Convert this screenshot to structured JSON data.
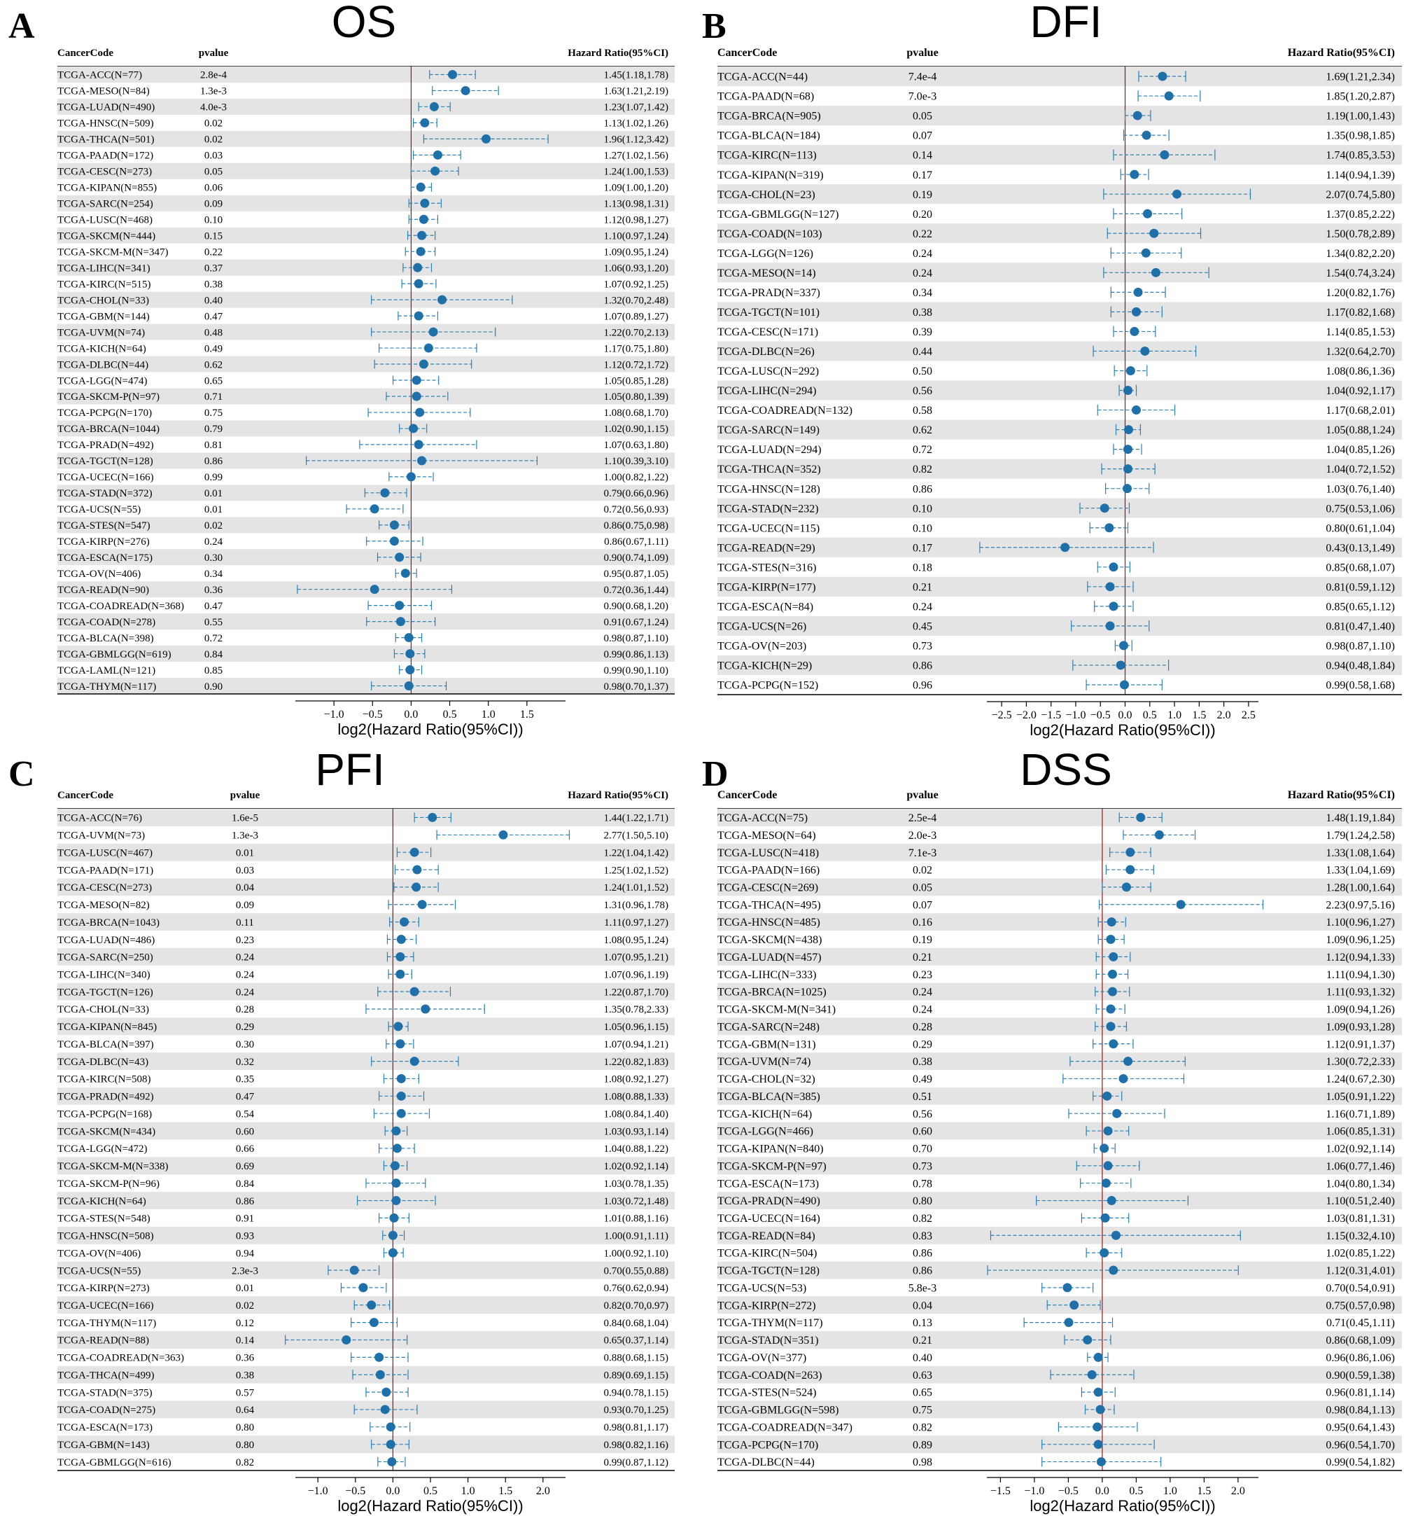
{
  "header": {
    "code_label": "CancerCode",
    "pvalue_label": "pvalue",
    "hr_label": "Hazard Ratio(95%CI)"
  },
  "colors": {
    "point": "#1f6fa8",
    "ci": "#2a7fb5",
    "ref_line": "#8b1a1a",
    "row_alt": "#e4e4e4"
  },
  "chart_data": [
    {
      "type": "forest",
      "letter": "A",
      "title": "OS",
      "xlabel": "log2(Hazard Ratio(95%CI))",
      "xticks": [
        -1.0,
        -0.5,
        0.0,
        0.5,
        1.0,
        1.5
      ],
      "xtick_labels": [
        "−1.0",
        "−0.5",
        "0.0",
        "0.5",
        "1.0",
        "1.5"
      ],
      "rows": [
        {
          "code": "TCGA-ACC(N=77)",
          "p": "2.8e-4",
          "hr": "1.45(1.18,1.78)"
        },
        {
          "code": "TCGA-MESO(N=84)",
          "p": "1.3e-3",
          "hr": "1.63(1.21,2.19)"
        },
        {
          "code": "TCGA-LUAD(N=490)",
          "p": "4.0e-3",
          "hr": "1.23(1.07,1.42)"
        },
        {
          "code": "TCGA-HNSC(N=509)",
          "p": "0.02",
          "hr": "1.13(1.02,1.26)"
        },
        {
          "code": "TCGA-THCA(N=501)",
          "p": "0.02",
          "hr": "1.96(1.12,3.42)"
        },
        {
          "code": "TCGA-PAAD(N=172)",
          "p": "0.03",
          "hr": "1.27(1.02,1.56)"
        },
        {
          "code": "TCGA-CESC(N=273)",
          "p": "0.05",
          "hr": "1.24(1.00,1.53)"
        },
        {
          "code": "TCGA-KIPAN(N=855)",
          "p": "0.06",
          "hr": "1.09(1.00,1.20)"
        },
        {
          "code": "TCGA-SARC(N=254)",
          "p": "0.09",
          "hr": "1.13(0.98,1.31)"
        },
        {
          "code": "TCGA-LUSC(N=468)",
          "p": "0.10",
          "hr": "1.12(0.98,1.27)"
        },
        {
          "code": "TCGA-SKCM(N=444)",
          "p": "0.15",
          "hr": "1.10(0.97,1.24)"
        },
        {
          "code": "TCGA-SKCM-M(N=347)",
          "p": "0.22",
          "hr": "1.09(0.95,1.24)"
        },
        {
          "code": "TCGA-LIHC(N=341)",
          "p": "0.37",
          "hr": "1.06(0.93,1.20)"
        },
        {
          "code": "TCGA-KIRC(N=515)",
          "p": "0.38",
          "hr": "1.07(0.92,1.25)"
        },
        {
          "code": "TCGA-CHOL(N=33)",
          "p": "0.40",
          "hr": "1.32(0.70,2.48)"
        },
        {
          "code": "TCGA-GBM(N=144)",
          "p": "0.47",
          "hr": "1.07(0.89,1.27)"
        },
        {
          "code": "TCGA-UVM(N=74)",
          "p": "0.48",
          "hr": "1.22(0.70,2.13)"
        },
        {
          "code": "TCGA-KICH(N=64)",
          "p": "0.49",
          "hr": "1.17(0.75,1.80)"
        },
        {
          "code": "TCGA-DLBC(N=44)",
          "p": "0.62",
          "hr": "1.12(0.72,1.72)"
        },
        {
          "code": "TCGA-LGG(N=474)",
          "p": "0.65",
          "hr": "1.05(0.85,1.28)"
        },
        {
          "code": "TCGA-SKCM-P(N=97)",
          "p": "0.71",
          "hr": "1.05(0.80,1.39)"
        },
        {
          "code": "TCGA-PCPG(N=170)",
          "p": "0.75",
          "hr": "1.08(0.68,1.70)"
        },
        {
          "code": "TCGA-BRCA(N=1044)",
          "p": "0.79",
          "hr": "1.02(0.90,1.15)"
        },
        {
          "code": "TCGA-PRAD(N=492)",
          "p": "0.81",
          "hr": "1.07(0.63,1.80)"
        },
        {
          "code": "TCGA-TGCT(N=128)",
          "p": "0.86",
          "hr": "1.10(0.39,3.10)"
        },
        {
          "code": "TCGA-UCEC(N=166)",
          "p": "0.99",
          "hr": "1.00(0.82,1.22)"
        },
        {
          "code": "TCGA-STAD(N=372)",
          "p": "0.01",
          "hr": "0.79(0.66,0.96)"
        },
        {
          "code": "TCGA-UCS(N=55)",
          "p": "0.01",
          "hr": "0.72(0.56,0.93)"
        },
        {
          "code": "TCGA-STES(N=547)",
          "p": "0.02",
          "hr": "0.86(0.75,0.98)"
        },
        {
          "code": "TCGA-KIRP(N=276)",
          "p": "0.24",
          "hr": "0.86(0.67,1.11)"
        },
        {
          "code": "TCGA-ESCA(N=175)",
          "p": "0.30",
          "hr": "0.90(0.74,1.09)"
        },
        {
          "code": "TCGA-OV(N=406)",
          "p": "0.34",
          "hr": "0.95(0.87,1.05)"
        },
        {
          "code": "TCGA-READ(N=90)",
          "p": "0.36",
          "hr": "0.72(0.36,1.44)"
        },
        {
          "code": "TCGA-COADREAD(N=368)",
          "p": "0.47",
          "hr": "0.90(0.68,1.20)"
        },
        {
          "code": "TCGA-COAD(N=278)",
          "p": "0.55",
          "hr": "0.91(0.67,1.24)"
        },
        {
          "code": "TCGA-BLCA(N=398)",
          "p": "0.72",
          "hr": "0.98(0.87,1.10)"
        },
        {
          "code": "TCGA-GBMLGG(N=619)",
          "p": "0.84",
          "hr": "0.99(0.86,1.13)"
        },
        {
          "code": "TCGA-LAML(N=121)",
          "p": "0.85",
          "hr": "0.99(0.90,1.10)"
        },
        {
          "code": "TCGA-THYM(N=117)",
          "p": "0.90",
          "hr": "0.98(0.70,1.37)"
        }
      ]
    },
    {
      "type": "forest",
      "letter": "B",
      "title": "DFI",
      "xlabel": "log2(Hazard Ratio(95%CI))",
      "xticks": [
        -2.5,
        -2.0,
        -1.5,
        -1.0,
        -0.5,
        0.0,
        0.5,
        1.0,
        1.5,
        2.0,
        2.5
      ],
      "xtick_labels": [
        "−2.5",
        "−2.0",
        "−1.5",
        "−1.0",
        "−0.5",
        "0.0",
        "0.5",
        "1.0",
        "1.5",
        "2.0",
        "2.5"
      ],
      "rows": [
        {
          "code": "TCGA-ACC(N=44)",
          "p": "7.4e-4",
          "hr": "1.69(1.21,2.34)"
        },
        {
          "code": "TCGA-PAAD(N=68)",
          "p": "7.0e-3",
          "hr": "1.85(1.20,2.87)"
        },
        {
          "code": "TCGA-BRCA(N=905)",
          "p": "0.05",
          "hr": "1.19(1.00,1.43)"
        },
        {
          "code": "TCGA-BLCA(N=184)",
          "p": "0.07",
          "hr": "1.35(0.98,1.85)"
        },
        {
          "code": "TCGA-KIRC(N=113)",
          "p": "0.14",
          "hr": "1.74(0.85,3.53)"
        },
        {
          "code": "TCGA-KIPAN(N=319)",
          "p": "0.17",
          "hr": "1.14(0.94,1.39)"
        },
        {
          "code": "TCGA-CHOL(N=23)",
          "p": "0.19",
          "hr": "2.07(0.74,5.80)"
        },
        {
          "code": "TCGA-GBMLGG(N=127)",
          "p": "0.20",
          "hr": "1.37(0.85,2.22)"
        },
        {
          "code": "TCGA-COAD(N=103)",
          "p": "0.22",
          "hr": "1.50(0.78,2.89)"
        },
        {
          "code": "TCGA-LGG(N=126)",
          "p": "0.24",
          "hr": "1.34(0.82,2.20)"
        },
        {
          "code": "TCGA-MESO(N=14)",
          "p": "0.24",
          "hr": "1.54(0.74,3.24)"
        },
        {
          "code": "TCGA-PRAD(N=337)",
          "p": "0.34",
          "hr": "1.20(0.82,1.76)"
        },
        {
          "code": "TCGA-TGCT(N=101)",
          "p": "0.38",
          "hr": "1.17(0.82,1.68)"
        },
        {
          "code": "TCGA-CESC(N=171)",
          "p": "0.39",
          "hr": "1.14(0.85,1.53)"
        },
        {
          "code": "TCGA-DLBC(N=26)",
          "p": "0.44",
          "hr": "1.32(0.64,2.70)"
        },
        {
          "code": "TCGA-LUSC(N=292)",
          "p": "0.50",
          "hr": "1.08(0.86,1.36)"
        },
        {
          "code": "TCGA-LIHC(N=294)",
          "p": "0.56",
          "hr": "1.04(0.92,1.17)"
        },
        {
          "code": "TCGA-COADREAD(N=132)",
          "p": "0.58",
          "hr": "1.17(0.68,2.01)"
        },
        {
          "code": "TCGA-SARC(N=149)",
          "p": "0.62",
          "hr": "1.05(0.88,1.24)"
        },
        {
          "code": "TCGA-LUAD(N=294)",
          "p": "0.72",
          "hr": "1.04(0.85,1.26)"
        },
        {
          "code": "TCGA-THCA(N=352)",
          "p": "0.82",
          "hr": "1.04(0.72,1.52)"
        },
        {
          "code": "TCGA-HNSC(N=128)",
          "p": "0.86",
          "hr": "1.03(0.76,1.40)"
        },
        {
          "code": "TCGA-STAD(N=232)",
          "p": "0.10",
          "hr": "0.75(0.53,1.06)"
        },
        {
          "code": "TCGA-UCEC(N=115)",
          "p": "0.10",
          "hr": "0.80(0.61,1.04)"
        },
        {
          "code": "TCGA-READ(N=29)",
          "p": "0.17",
          "hr": "0.43(0.13,1.49)"
        },
        {
          "code": "TCGA-STES(N=316)",
          "p": "0.18",
          "hr": "0.85(0.68,1.07)"
        },
        {
          "code": "TCGA-KIRP(N=177)",
          "p": "0.21",
          "hr": "0.81(0.59,1.12)"
        },
        {
          "code": "TCGA-ESCA(N=84)",
          "p": "0.24",
          "hr": "0.85(0.65,1.12)"
        },
        {
          "code": "TCGA-UCS(N=26)",
          "p": "0.45",
          "hr": "0.81(0.47,1.40)"
        },
        {
          "code": "TCGA-OV(N=203)",
          "p": "0.73",
          "hr": "0.98(0.87,1.10)"
        },
        {
          "code": "TCGA-KICH(N=29)",
          "p": "0.86",
          "hr": "0.94(0.48,1.84)"
        },
        {
          "code": "TCGA-PCPG(N=152)",
          "p": "0.96",
          "hr": "0.99(0.58,1.68)"
        }
      ]
    },
    {
      "type": "forest",
      "letter": "C",
      "title": "PFI",
      "xlabel": "log2(Hazard Ratio(95%CI))",
      "xticks": [
        -1.0,
        -0.5,
        0.0,
        0.5,
        1.0,
        1.5,
        2.0
      ],
      "xtick_labels": [
        "−1.0",
        "−0.5",
        "0.0",
        "0.5",
        "1.0",
        "1.5",
        "2.0"
      ],
      "rows": [
        {
          "code": "TCGA-ACC(N=76)",
          "p": "1.6e-5",
          "hr": "1.44(1.22,1.71)"
        },
        {
          "code": "TCGA-UVM(N=73)",
          "p": "1.3e-3",
          "hr": "2.77(1.50,5.10)"
        },
        {
          "code": "TCGA-LUSC(N=467)",
          "p": "0.01",
          "hr": "1.22(1.04,1.42)"
        },
        {
          "code": "TCGA-PAAD(N=171)",
          "p": "0.03",
          "hr": "1.25(1.02,1.52)"
        },
        {
          "code": "TCGA-CESC(N=273)",
          "p": "0.04",
          "hr": "1.24(1.01,1.52)"
        },
        {
          "code": "TCGA-MESO(N=82)",
          "p": "0.09",
          "hr": "1.31(0.96,1.78)"
        },
        {
          "code": "TCGA-BRCA(N=1043)",
          "p": "0.11",
          "hr": "1.11(0.97,1.27)"
        },
        {
          "code": "TCGA-LUAD(N=486)",
          "p": "0.23",
          "hr": "1.08(0.95,1.24)"
        },
        {
          "code": "TCGA-SARC(N=250)",
          "p": "0.24",
          "hr": "1.07(0.95,1.21)"
        },
        {
          "code": "TCGA-LIHC(N=340)",
          "p": "0.24",
          "hr": "1.07(0.96,1.19)"
        },
        {
          "code": "TCGA-TGCT(N=126)",
          "p": "0.24",
          "hr": "1.22(0.87,1.70)"
        },
        {
          "code": "TCGA-CHOL(N=33)",
          "p": "0.28",
          "hr": "1.35(0.78,2.33)"
        },
        {
          "code": "TCGA-KIPAN(N=845)",
          "p": "0.29",
          "hr": "1.05(0.96,1.15)"
        },
        {
          "code": "TCGA-BLCA(N=397)",
          "p": "0.30",
          "hr": "1.07(0.94,1.21)"
        },
        {
          "code": "TCGA-DLBC(N=43)",
          "p": "0.32",
          "hr": "1.22(0.82,1.83)"
        },
        {
          "code": "TCGA-KIRC(N=508)",
          "p": "0.35",
          "hr": "1.08(0.92,1.27)"
        },
        {
          "code": "TCGA-PRAD(N=492)",
          "p": "0.47",
          "hr": "1.08(0.88,1.33)"
        },
        {
          "code": "TCGA-PCPG(N=168)",
          "p": "0.54",
          "hr": "1.08(0.84,1.40)"
        },
        {
          "code": "TCGA-SKCM(N=434)",
          "p": "0.60",
          "hr": "1.03(0.93,1.14)"
        },
        {
          "code": "TCGA-LGG(N=472)",
          "p": "0.66",
          "hr": "1.04(0.88,1.22)"
        },
        {
          "code": "TCGA-SKCM-M(N=338)",
          "p": "0.69",
          "hr": "1.02(0.92,1.14)"
        },
        {
          "code": "TCGA-SKCM-P(N=96)",
          "p": "0.84",
          "hr": "1.03(0.78,1.35)"
        },
        {
          "code": "TCGA-KICH(N=64)",
          "p": "0.86",
          "hr": "1.03(0.72,1.48)"
        },
        {
          "code": "TCGA-STES(N=548)",
          "p": "0.91",
          "hr": "1.01(0.88,1.16)"
        },
        {
          "code": "TCGA-HNSC(N=508)",
          "p": "0.93",
          "hr": "1.00(0.91,1.11)"
        },
        {
          "code": "TCGA-OV(N=406)",
          "p": "0.94",
          "hr": "1.00(0.92,1.10)"
        },
        {
          "code": "TCGA-UCS(N=55)",
          "p": "2.3e-3",
          "hr": "0.70(0.55,0.88)"
        },
        {
          "code": "TCGA-KIRP(N=273)",
          "p": "0.01",
          "hr": "0.76(0.62,0.94)"
        },
        {
          "code": "TCGA-UCEC(N=166)",
          "p": "0.02",
          "hr": "0.82(0.70,0.97)"
        },
        {
          "code": "TCGA-THYM(N=117)",
          "p": "0.12",
          "hr": "0.84(0.68,1.04)"
        },
        {
          "code": "TCGA-READ(N=88)",
          "p": "0.14",
          "hr": "0.65(0.37,1.14)"
        },
        {
          "code": "TCGA-COADREAD(N=363)",
          "p": "0.36",
          "hr": "0.88(0.68,1.15)"
        },
        {
          "code": "TCGA-THCA(N=499)",
          "p": "0.38",
          "hr": "0.89(0.69,1.15)"
        },
        {
          "code": "TCGA-STAD(N=375)",
          "p": "0.57",
          "hr": "0.94(0.78,1.15)"
        },
        {
          "code": "TCGA-COAD(N=275)",
          "p": "0.64",
          "hr": "0.93(0.70,1.25)"
        },
        {
          "code": "TCGA-ESCA(N=173)",
          "p": "0.80",
          "hr": "0.98(0.81,1.17)"
        },
        {
          "code": "TCGA-GBM(N=143)",
          "p": "0.80",
          "hr": "0.98(0.82,1.16)"
        },
        {
          "code": "TCGA-GBMLGG(N=616)",
          "p": "0.82",
          "hr": "0.99(0.87,1.12)"
        }
      ]
    },
    {
      "type": "forest",
      "letter": "D",
      "title": "DSS",
      "xlabel": "log2(Hazard Ratio(95%CI))",
      "xticks": [
        -1.5,
        -1.0,
        -0.5,
        0.0,
        0.5,
        1.0,
        1.5,
        2.0
      ],
      "xtick_labels": [
        "−1.5",
        "−1.0",
        "−0.5",
        "0.0",
        "0.5",
        "1.0",
        "1.5",
        "2.0"
      ],
      "rows": [
        {
          "code": "TCGA-ACC(N=75)",
          "p": "2.5e-4",
          "hr": "1.48(1.19,1.84)"
        },
        {
          "code": "TCGA-MESO(N=64)",
          "p": "2.0e-3",
          "hr": "1.79(1.24,2.58)"
        },
        {
          "code": "TCGA-LUSC(N=418)",
          "p": "7.1e-3",
          "hr": "1.33(1.08,1.64)"
        },
        {
          "code": "TCGA-PAAD(N=166)",
          "p": "0.02",
          "hr": "1.33(1.04,1.69)"
        },
        {
          "code": "TCGA-CESC(N=269)",
          "p": "0.05",
          "hr": "1.28(1.00,1.64)"
        },
        {
          "code": "TCGA-THCA(N=495)",
          "p": "0.07",
          "hr": "2.23(0.97,5.16)"
        },
        {
          "code": "TCGA-HNSC(N=485)",
          "p": "0.16",
          "hr": "1.10(0.96,1.27)"
        },
        {
          "code": "TCGA-SKCM(N=438)",
          "p": "0.19",
          "hr": "1.09(0.96,1.25)"
        },
        {
          "code": "TCGA-LUAD(N=457)",
          "p": "0.21",
          "hr": "1.12(0.94,1.33)"
        },
        {
          "code": "TCGA-LIHC(N=333)",
          "p": "0.23",
          "hr": "1.11(0.94,1.30)"
        },
        {
          "code": "TCGA-BRCA(N=1025)",
          "p": "0.24",
          "hr": "1.11(0.93,1.32)"
        },
        {
          "code": "TCGA-SKCM-M(N=341)",
          "p": "0.24",
          "hr": "1.09(0.94,1.26)"
        },
        {
          "code": "TCGA-SARC(N=248)",
          "p": "0.28",
          "hr": "1.09(0.93,1.28)"
        },
        {
          "code": "TCGA-GBM(N=131)",
          "p": "0.29",
          "hr": "1.12(0.91,1.37)"
        },
        {
          "code": "TCGA-UVM(N=74)",
          "p": "0.38",
          "hr": "1.30(0.72,2.33)"
        },
        {
          "code": "TCGA-CHOL(N=32)",
          "p": "0.49",
          "hr": "1.24(0.67,2.30)"
        },
        {
          "code": "TCGA-BLCA(N=385)",
          "p": "0.51",
          "hr": "1.05(0.91,1.22)"
        },
        {
          "code": "TCGA-KICH(N=64)",
          "p": "0.56",
          "hr": "1.16(0.71,1.89)"
        },
        {
          "code": "TCGA-LGG(N=466)",
          "p": "0.60",
          "hr": "1.06(0.85,1.31)"
        },
        {
          "code": "TCGA-KIPAN(N=840)",
          "p": "0.70",
          "hr": "1.02(0.92,1.14)"
        },
        {
          "code": "TCGA-SKCM-P(N=97)",
          "p": "0.73",
          "hr": "1.06(0.77,1.46)"
        },
        {
          "code": "TCGA-ESCA(N=173)",
          "p": "0.78",
          "hr": "1.04(0.80,1.34)"
        },
        {
          "code": "TCGA-PRAD(N=490)",
          "p": "0.80",
          "hr": "1.10(0.51,2.40)"
        },
        {
          "code": "TCGA-UCEC(N=164)",
          "p": "0.82",
          "hr": "1.03(0.81,1.31)"
        },
        {
          "code": "TCGA-READ(N=84)",
          "p": "0.83",
          "hr": "1.15(0.32,4.10)"
        },
        {
          "code": "TCGA-KIRC(N=504)",
          "p": "0.86",
          "hr": "1.02(0.85,1.22)"
        },
        {
          "code": "TCGA-TGCT(N=128)",
          "p": "0.86",
          "hr": "1.12(0.31,4.01)"
        },
        {
          "code": "TCGA-UCS(N=53)",
          "p": "5.8e-3",
          "hr": "0.70(0.54,0.91)"
        },
        {
          "code": "TCGA-KIRP(N=272)",
          "p": "0.04",
          "hr": "0.75(0.57,0.98)"
        },
        {
          "code": "TCGA-THYM(N=117)",
          "p": "0.13",
          "hr": "0.71(0.45,1.11)"
        },
        {
          "code": "TCGA-STAD(N=351)",
          "p": "0.21",
          "hr": "0.86(0.68,1.09)"
        },
        {
          "code": "TCGA-OV(N=377)",
          "p": "0.40",
          "hr": "0.96(0.86,1.06)"
        },
        {
          "code": "TCGA-COAD(N=263)",
          "p": "0.63",
          "hr": "0.90(0.59,1.38)"
        },
        {
          "code": "TCGA-STES(N=524)",
          "p": "0.65",
          "hr": "0.96(0.81,1.14)"
        },
        {
          "code": "TCGA-GBMLGG(N=598)",
          "p": "0.75",
          "hr": "0.98(0.84,1.13)"
        },
        {
          "code": "TCGA-COADREAD(N=347)",
          "p": "0.82",
          "hr": "0.95(0.64,1.43)"
        },
        {
          "code": "TCGA-PCPG(N=170)",
          "p": "0.89",
          "hr": "0.96(0.54,1.70)"
        },
        {
          "code": "TCGA-DLBC(N=44)",
          "p": "0.98",
          "hr": "0.99(0.54,1.82)"
        }
      ]
    }
  ]
}
